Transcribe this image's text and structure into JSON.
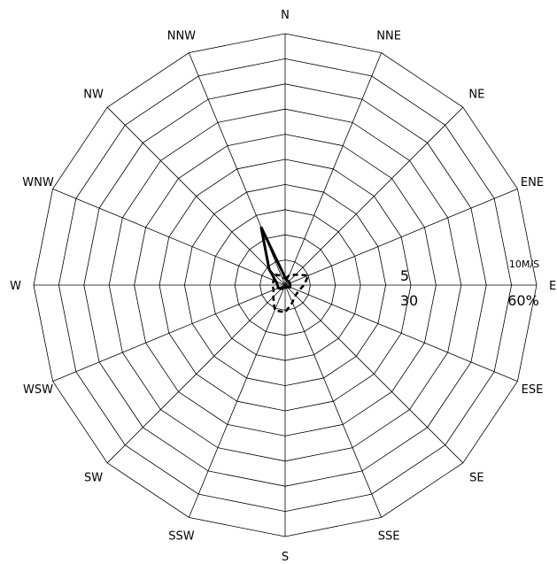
{
  "chart_data": {
    "type": "wind-rose",
    "directions": [
      "N",
      "NNE",
      "NE",
      "ENE",
      "E",
      "ESE",
      "SE",
      "SSE",
      "S",
      "SSW",
      "SW",
      "WSW",
      "W",
      "WNW",
      "NW",
      "NNW"
    ],
    "rings": 10,
    "scale_labels": {
      "speed_half": "5",
      "speed_max": "10M/S",
      "freq_half": "30",
      "freq_max": "60%"
    },
    "speed_max": 10,
    "freq_max": 60,
    "series": [
      {
        "name": "",
        "style": "solid",
        "unit": "m/s",
        "values": [
          0.3,
          0.2,
          0.2,
          0.2,
          0.2,
          0.2,
          0.1,
          0.1,
          0.1,
          0.1,
          0.2,
          0.3,
          0.3,
          0.4,
          0.9,
          2.5
        ]
      },
      {
        "name": "",
        "style": "dashed",
        "unit": "%",
        "values": [
          1.5,
          2.5,
          3.5,
          6.0,
          4.5,
          3.5,
          3.5,
          4.5,
          6.5,
          6.5,
          4.0,
          3.0,
          3.0,
          3.0,
          3.5,
          2.5
        ]
      }
    ]
  }
}
